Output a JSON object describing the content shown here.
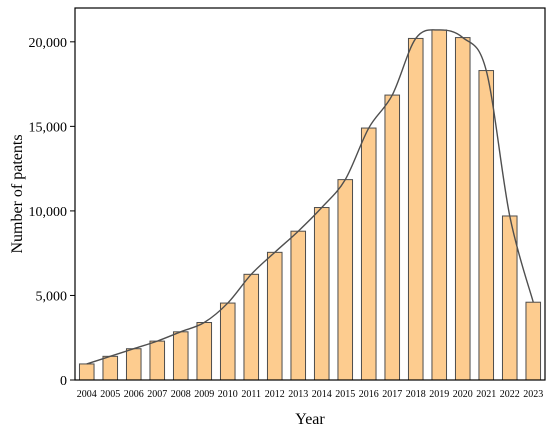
{
  "chart_data": {
    "type": "bar",
    "title": "",
    "xlabel": "Year",
    "ylabel": "Number of patents",
    "ylim": [
      0,
      22000
    ],
    "yticks": [
      0,
      5000,
      10000,
      15000,
      20000
    ],
    "ytick_labels": [
      "0",
      "5,000",
      "10,000",
      "15,000",
      "20,000"
    ],
    "categories": [
      "2004",
      "2005",
      "2006",
      "2007",
      "2008",
      "2009",
      "2010",
      "2011",
      "2012",
      "2013",
      "2014",
      "2015",
      "2016",
      "2017",
      "2018",
      "2019",
      "2020",
      "2021",
      "2022",
      "2023"
    ],
    "series": [
      {
        "values": [
          950,
          1400,
          1850,
          2300,
          2850,
          3400,
          4550,
          6250,
          7550,
          8800,
          10200,
          11850,
          14900,
          16850,
          20200,
          20700,
          20250,
          18300,
          9700,
          4600
        ]
      }
    ],
    "trend_curve": true,
    "grid": false,
    "legend": "none"
  },
  "colors": {
    "bar_fill": "#fdcc8f",
    "bar_stroke": "#4d4d4d",
    "curve": "#4f4f4f",
    "axis": "#000000"
  }
}
